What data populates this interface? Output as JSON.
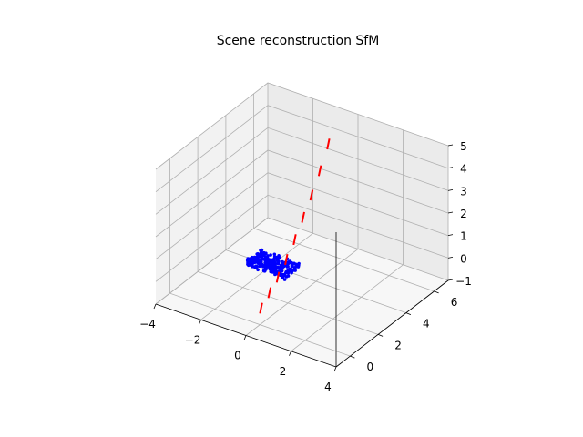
{
  "chart_data": {
    "type": "scatter3d",
    "title": "Scene reconstruction SfM",
    "xlabel": "",
    "ylabel": "",
    "zlabel": "",
    "xlim": [
      -4,
      4
    ],
    "ylim": [
      -1,
      7
    ],
    "zlim": [
      -1,
      5
    ],
    "xticks": [
      -4,
      -2,
      0,
      2,
      4
    ],
    "yticks": [
      0,
      2,
      4,
      6
    ],
    "zticks": [
      -1,
      0,
      1,
      2,
      3,
      4,
      5
    ],
    "grid": true,
    "point_cloud": {
      "color": "#0000ff",
      "center": [
        -1.3,
        3.0,
        -0.2
      ],
      "extent": [
        0.9,
        0.6,
        0.1
      ]
    },
    "camera_poses": {
      "color": "#ff0000",
      "positions": [
        [
          0.0,
          0.0,
          -0.5
        ],
        [
          0.0,
          0.6,
          -0.1
        ],
        [
          0.0,
          1.2,
          0.3
        ],
        [
          0.0,
          1.8,
          0.8
        ],
        [
          0.0,
          2.4,
          1.4
        ],
        [
          0.0,
          3.0,
          2.1
        ],
        [
          0.0,
          3.6,
          2.8
        ],
        [
          0.0,
          4.2,
          3.6
        ],
        [
          0.0,
          4.8,
          4.5
        ]
      ],
      "direction": [
        0,
        0,
        0.45
      ]
    }
  },
  "colors": {
    "points": "#0000ff",
    "cameras": "#ff0000",
    "pane_left": "#f2f2f2",
    "pane_right": "#ebebeb",
    "pane_floor": "#f7f7f7"
  }
}
